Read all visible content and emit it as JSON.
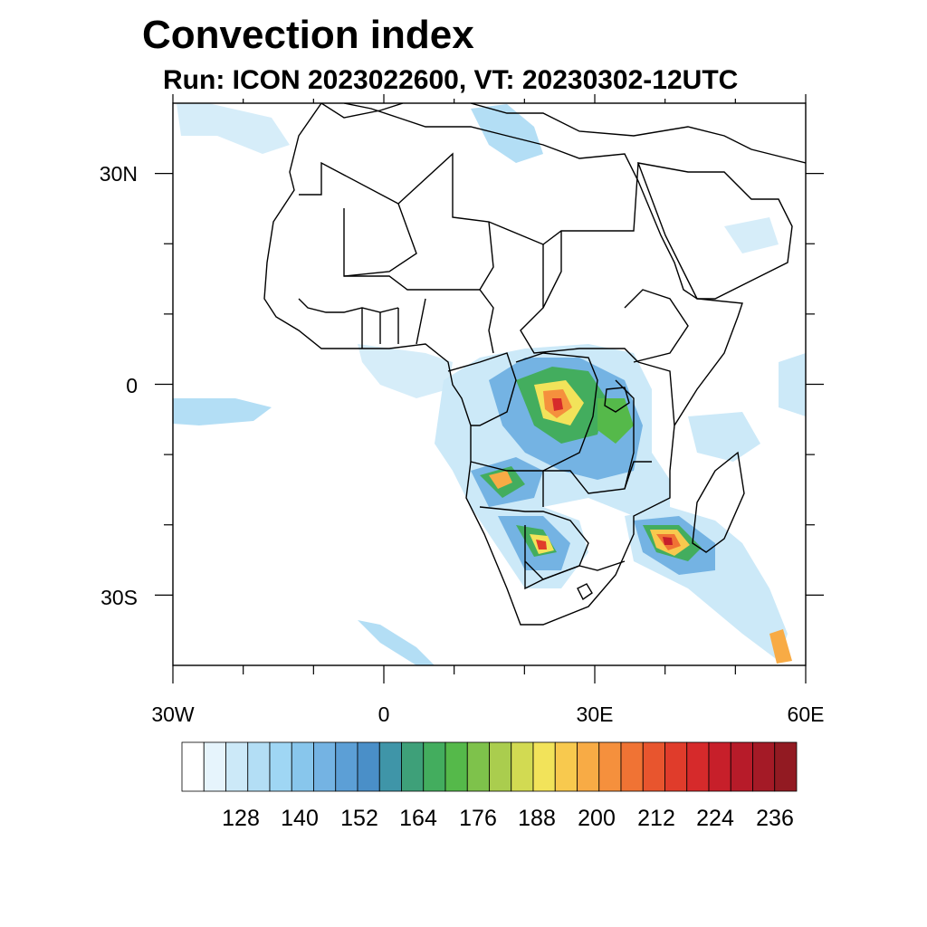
{
  "title": "Convection index",
  "subtitle": "Run: ICON 2023022600,  VT: 20230302-12UTC",
  "map": {
    "region": "Africa",
    "lon_range": [
      -30,
      60
    ],
    "lat_range": [
      -40,
      40
    ],
    "lon_tick_labels": [
      "30W",
      "0",
      "30E",
      "60E"
    ],
    "lat_tick_labels": [
      "30N",
      "0",
      "30S"
    ],
    "frame_color": "#000000",
    "border_color": "#000000"
  },
  "colorbar": {
    "labels": [
      "128",
      "140",
      "152",
      "164",
      "176",
      "188",
      "200",
      "212",
      "224",
      "236"
    ],
    "colors": [
      "#ffffff",
      "#e6f4fc",
      "#cce9f8",
      "#b3def5",
      "#9fd6f4",
      "#88c6ec",
      "#74b3e3",
      "#5c9fd6",
      "#4a8fc8",
      "#3f95a8",
      "#3ea079",
      "#43ad5e",
      "#55b94a",
      "#7ec24b",
      "#aacd4e",
      "#d2da52",
      "#f2e35a",
      "#f8c94e",
      "#f8ab45",
      "#f5903d",
      "#f07334",
      "#e8552e",
      "#e03c2b",
      "#d62a2b",
      "#c71f2a",
      "#b71b29",
      "#a41a26",
      "#921a22"
    ]
  }
}
